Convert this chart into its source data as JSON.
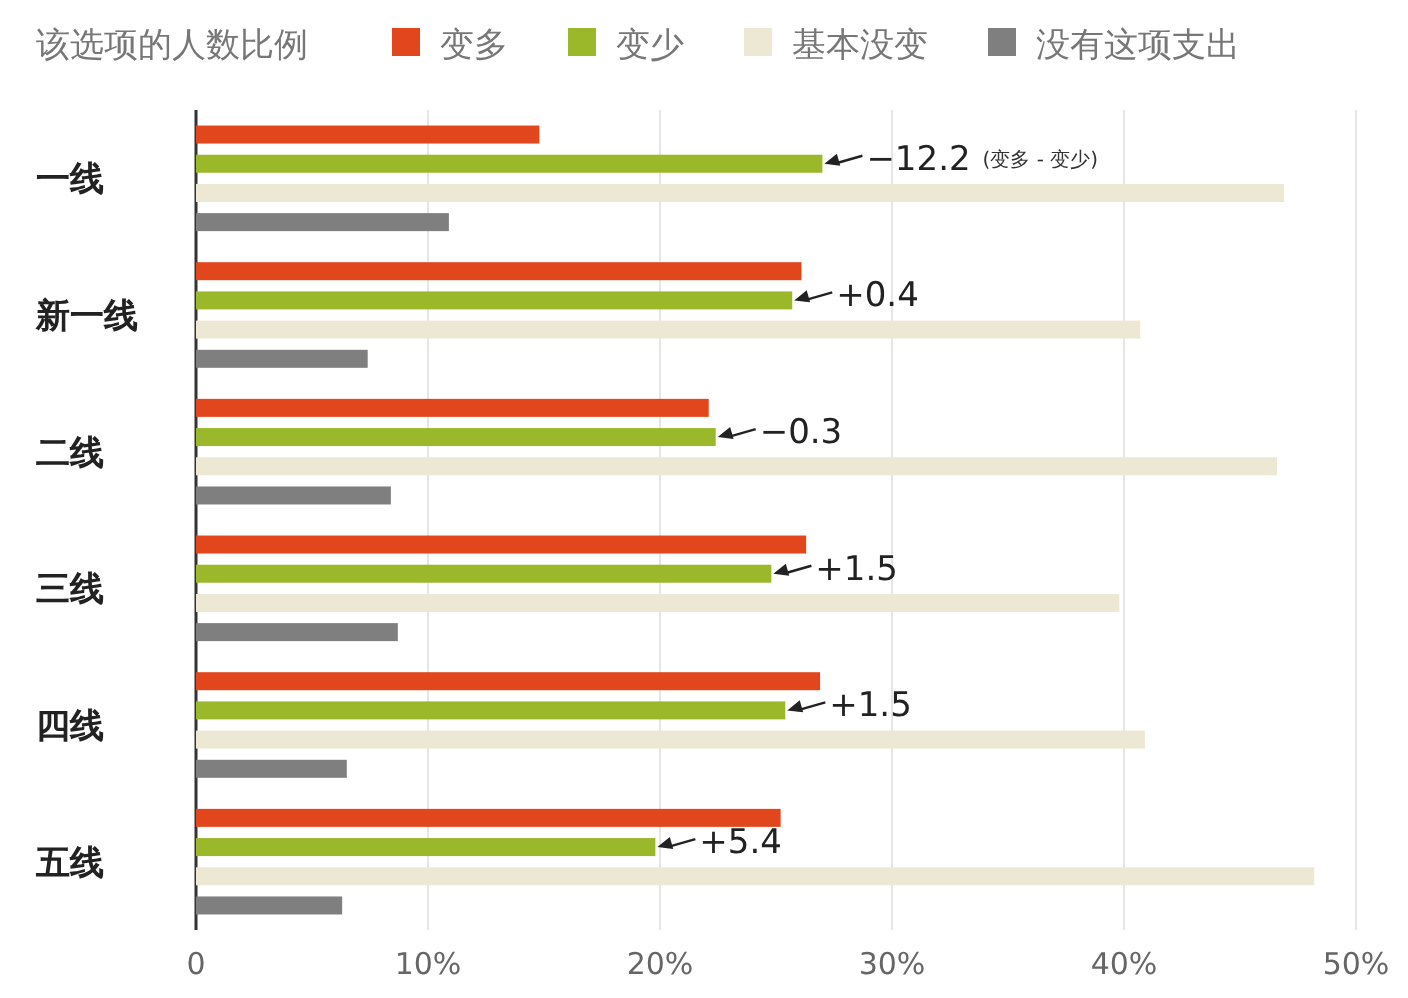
{
  "chart_data": {
    "type": "bar",
    "orientation": "horizontal",
    "legend_title": "该选项的人数比例",
    "legend": "top",
    "categories": [
      "一线",
      "新一线",
      "二线",
      "三线",
      "四线",
      "五线"
    ],
    "series": [
      {
        "name": "变多",
        "color": "#e2461c",
        "values": [
          14.8,
          26.1,
          22.1,
          26.3,
          26.9,
          25.2
        ]
      },
      {
        "name": "变少",
        "color": "#9bb82a",
        "values": [
          27.0,
          25.7,
          22.4,
          24.8,
          25.4,
          19.8
        ]
      },
      {
        "name": "基本没变",
        "color": "#ede8d4",
        "values": [
          46.9,
          40.7,
          46.6,
          39.8,
          40.9,
          48.2
        ]
      },
      {
        "name": "没有这项支出",
        "color": "#7f7f7f",
        "values": [
          10.9,
          7.4,
          8.4,
          8.7,
          6.5,
          6.3
        ]
      }
    ],
    "xlim": [
      0,
      50
    ],
    "xticks": [
      0,
      {
        "value": 10,
        "label": "10%"
      },
      {
        "value": 20,
        "label": "20%"
      },
      {
        "value": 30,
        "label": "30%"
      },
      {
        "value": 40,
        "label": "40%"
      },
      {
        "value": 50,
        "label": "50%"
      }
    ],
    "grid": "x",
    "annotations": [
      {
        "text": "−12.2",
        "x": 27.0,
        "y": "一线"
      },
      "(变多 - 变少)",
      {
        "text": "+0.4",
        "x": 25.7,
        "y": "新一线"
      },
      {
        "text": "−0.3",
        "x": 22.4,
        "y": "二线"
      },
      {
        "text": "+1.5",
        "x": 24.8,
        "y": "三线"
      },
      {
        "text": "+1.5",
        "x": 25.4,
        "y": "四线"
      },
      {
        "text": "+5.4",
        "x": 19.8,
        "y": "五线"
      }
    ]
  }
}
